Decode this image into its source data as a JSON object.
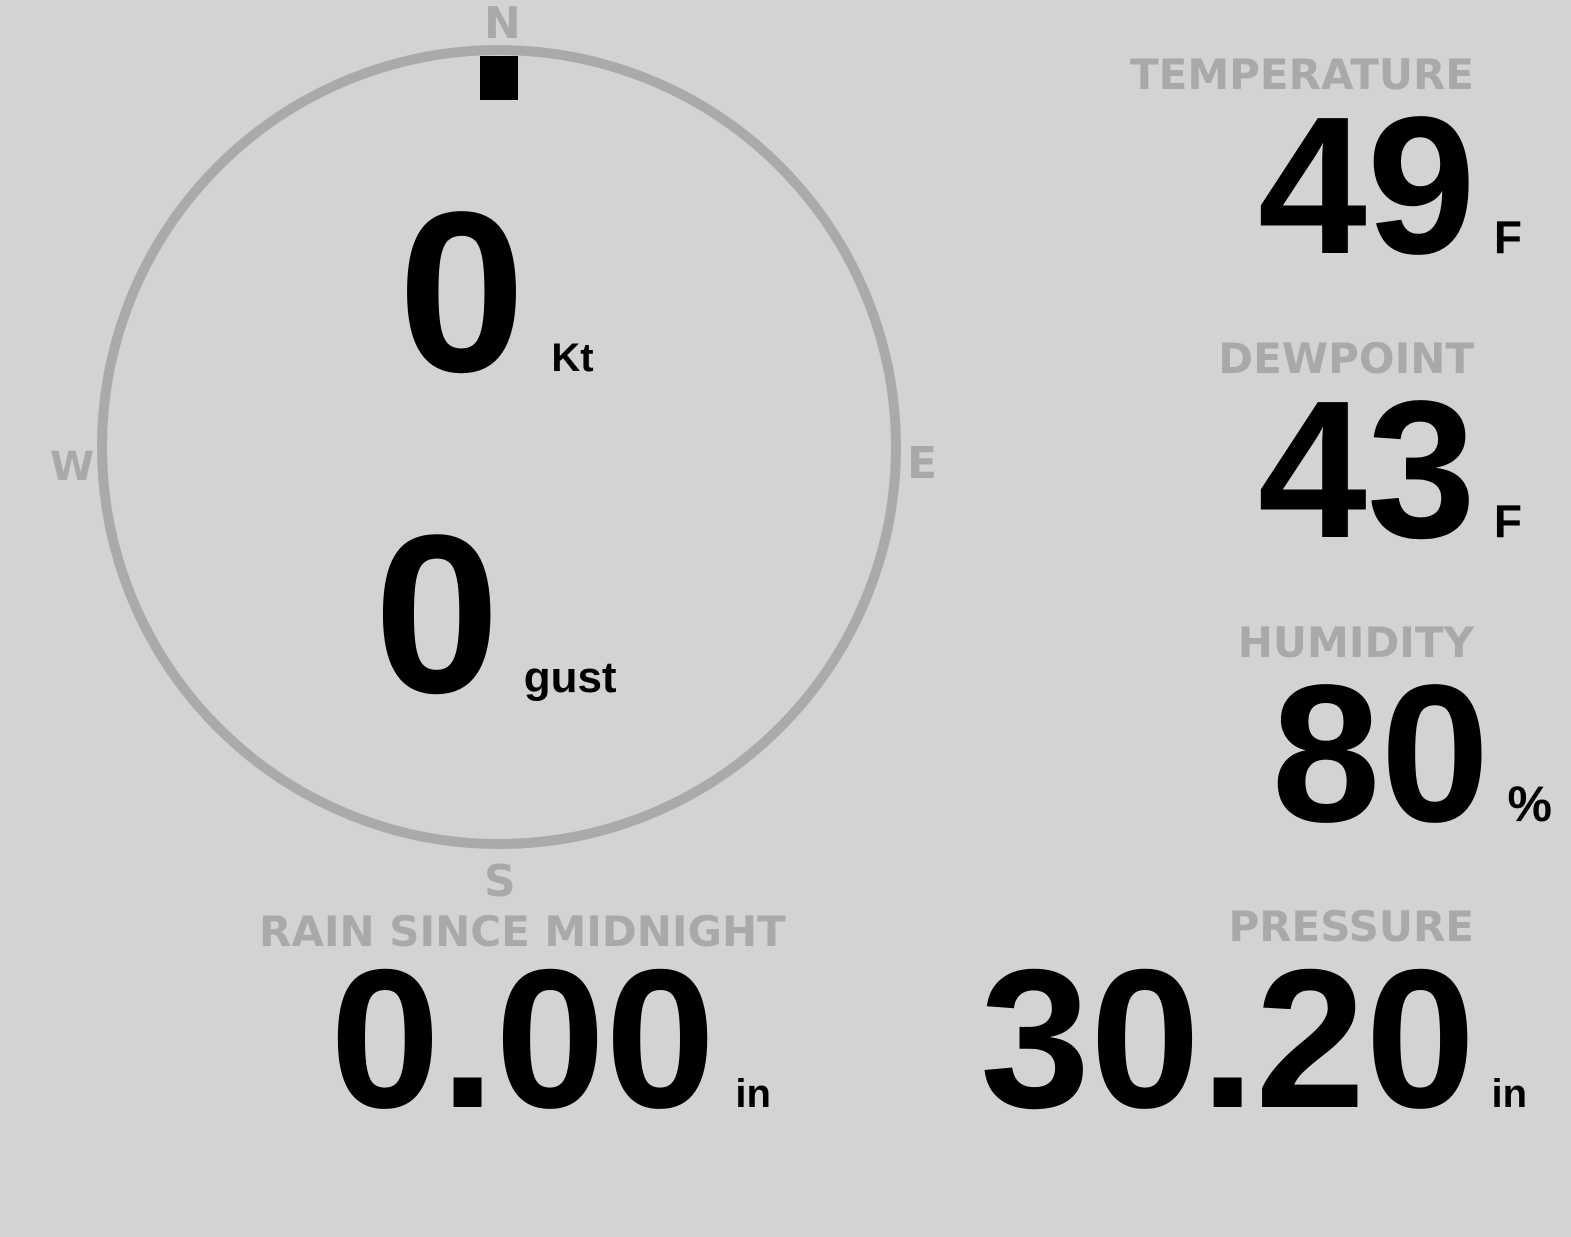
{
  "wind": {
    "compass": {
      "north": "N",
      "south": "S",
      "east": "E",
      "west": "W"
    },
    "direction_deg": 0,
    "speed": "0",
    "speed_unit": "Kt",
    "gust": "0",
    "gust_unit": "gust",
    "colors": {
      "ring": "#aaaaaa",
      "marker": "#000000"
    }
  },
  "temperature": {
    "label": "TEMPERATURE",
    "value": "49",
    "unit": "F"
  },
  "dewpoint": {
    "label": "DEWPOINT",
    "value": "43",
    "unit": "F"
  },
  "humidity": {
    "label": "HUMIDITY",
    "value": "80",
    "unit": "%"
  },
  "rain": {
    "label": "RAIN SINCE MIDNIGHT",
    "value": "0.00",
    "unit": "in"
  },
  "pressure": {
    "label": "PRESSURE",
    "value": "30.20",
    "unit": "in"
  },
  "colors": {
    "background": "#d3d3d3",
    "label": "#a9a9a9",
    "value": "#000000"
  }
}
